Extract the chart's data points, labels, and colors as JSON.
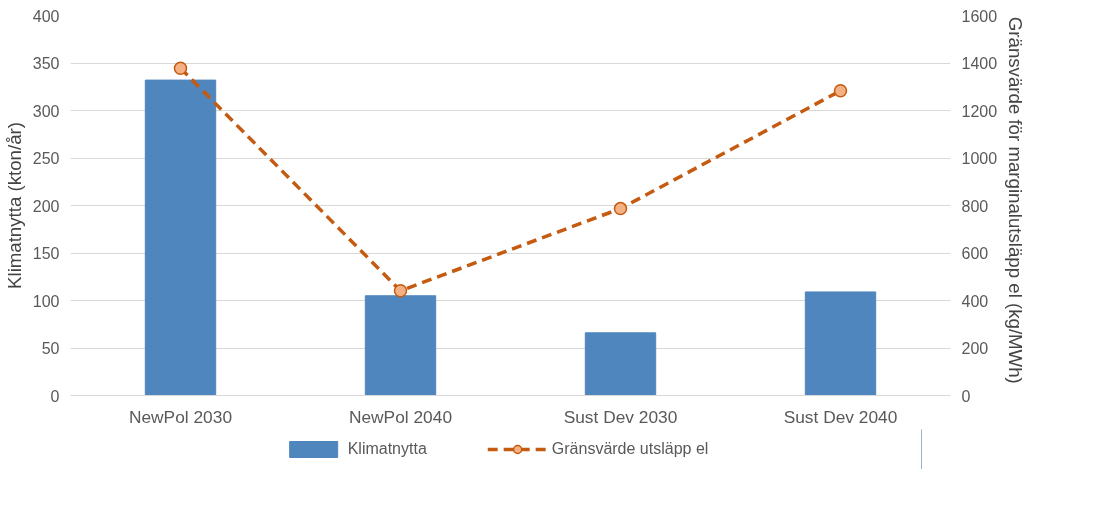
{
  "chart_data": {
    "type": "bar",
    "categories": [
      "NewPol 2030",
      "NewPol 2040",
      "Sust Dev 2030",
      "Sust Dev 2040"
    ],
    "ylabel": "Klimatnytta (kton/år)",
    "y2label": "Gränsvärde för   marginalutsläpp el (kg/MWh)",
    "ylim": [
      0,
      400
    ],
    "yticks": [
      0,
      50,
      100,
      150,
      200,
      250,
      300,
      350,
      400
    ],
    "y2lim": [
      0,
      1600
    ],
    "y2ticks": [
      0,
      200,
      400,
      600,
      800,
      1000,
      1200,
      1400,
      1600
    ],
    "grid": "y",
    "legend": "bottom",
    "series": [
      {
        "name": "Klimatnytta",
        "color": "#4f86bd",
        "values": [
          332,
          105,
          66,
          109
        ]
      },
      {
        "name": "Gränsvärde utsläpp el",
        "type": "line",
        "axis": "y2",
        "color": "#c55a11",
        "marker": "circle",
        "line_style": "dashed",
        "values": [
          1378,
          441,
          787,
          1283
        ]
      }
    ]
  }
}
